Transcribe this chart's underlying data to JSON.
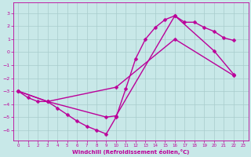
{
  "xlabel": "Windchill (Refroidissement éolien,°C)",
  "xlim": [
    -0.5,
    23.5
  ],
  "ylim": [
    -6.8,
    3.8
  ],
  "xticks": [
    0,
    1,
    2,
    3,
    4,
    5,
    6,
    7,
    8,
    9,
    10,
    11,
    12,
    13,
    14,
    15,
    16,
    17,
    18,
    19,
    20,
    21,
    22,
    23
  ],
  "yticks": [
    -6,
    -5,
    -4,
    -3,
    -2,
    -1,
    0,
    1,
    2,
    3
  ],
  "bg_color": "#c8e8e8",
  "grid_color": "#a8cccc",
  "line_color": "#bb0099",
  "line1_x": [
    0,
    1,
    2,
    3,
    4,
    5,
    6,
    7,
    8,
    9,
    10,
    11,
    12,
    13,
    14,
    15,
    16,
    17,
    18,
    19,
    20,
    21,
    22
  ],
  "line1_y": [
    -3.0,
    -3.5,
    -3.8,
    -3.8,
    -4.3,
    -4.8,
    -5.3,
    -5.7,
    -6.0,
    -6.3,
    -5.0,
    -2.8,
    -0.5,
    1.0,
    1.9,
    2.5,
    2.8,
    2.3,
    2.3,
    1.9,
    1.6,
    1.1,
    0.9
  ],
  "line2_x": [
    0,
    3,
    10,
    16,
    22
  ],
  "line2_y": [
    -3.0,
    -3.8,
    -2.7,
    1.0,
    -1.8
  ],
  "line3_x": [
    0,
    3,
    9,
    10,
    16,
    20,
    22
  ],
  "line3_y": [
    -3.0,
    -3.8,
    -5.0,
    -4.9,
    2.8,
    0.1,
    -1.7
  ],
  "marker": "D",
  "markersize": 2.5,
  "linewidth": 1.0
}
